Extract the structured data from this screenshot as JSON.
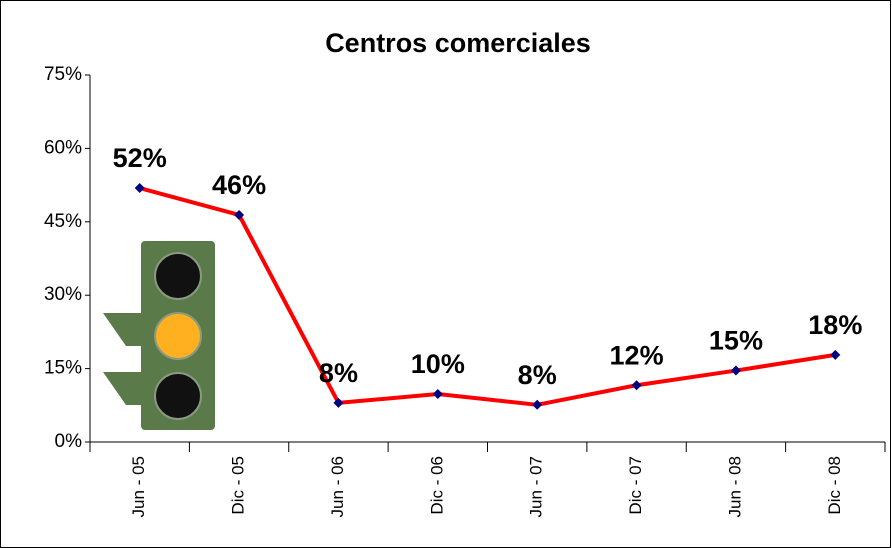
{
  "chart_data": {
    "type": "line",
    "title": "Centros comerciales",
    "categories": [
      "Jun - 05",
      "Dic - 05",
      "Jun - 06",
      "Dic - 06",
      "Jun - 07",
      "Dic - 07",
      "Jun - 08",
      "Dic - 08"
    ],
    "series": [
      {
        "color": "#ff0000",
        "values": [
          51.9,
          46.4,
          8.0,
          9.8,
          7.6,
          11.6,
          14.6,
          17.8
        ],
        "value_labels": [
          "52%",
          "46%",
          "8%",
          "10%",
          "8%",
          "12%",
          "15%",
          "18%"
        ]
      }
    ],
    "ylim": [
      0,
      75
    ],
    "yticks": [
      {
        "value": 0,
        "label": "0%"
      },
      {
        "value": 15,
        "label": "15%"
      },
      {
        "value": 30,
        "label": "30%"
      },
      {
        "value": 45,
        "label": "45%"
      },
      {
        "value": 60,
        "label": "60%"
      },
      {
        "value": 75,
        "label": "75%"
      }
    ],
    "marker_color": "#000080"
  }
}
